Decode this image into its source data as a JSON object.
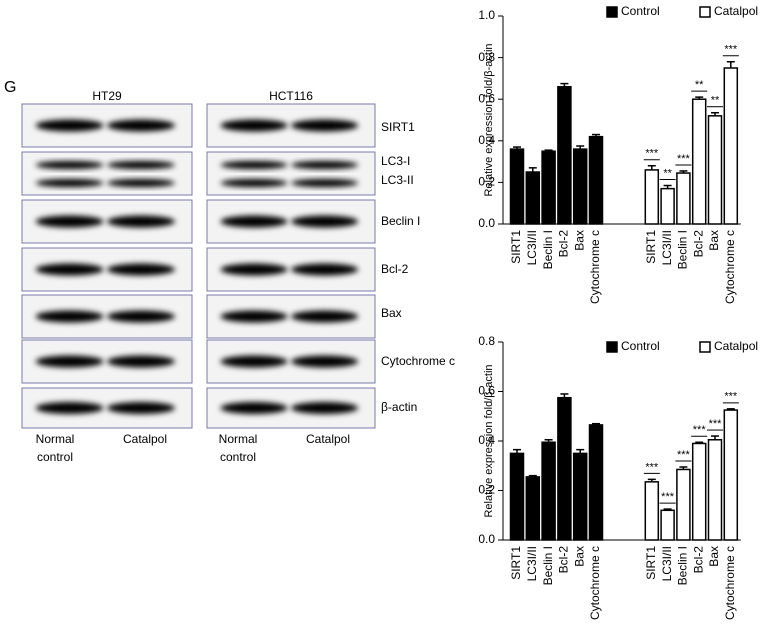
{
  "panel_label": "G",
  "blot": {
    "cell_lines": [
      "HT29",
      "HCT116"
    ],
    "proteins": [
      "SIRT1",
      "LC3-I",
      "LC3-II",
      "Beclin I",
      "Bcl-2",
      "Bax",
      "Cytochrome c",
      "β-actin"
    ],
    "lane_labels": [
      [
        "Normal",
        "control"
      ],
      [
        "Catalpol"
      ]
    ]
  },
  "chart_data": [
    {
      "type": "bar",
      "y_label": "Relative expression fold/β-actin",
      "categories": [
        "SIRT1",
        "LC3I/II",
        "Beclin I",
        "Bcl-2",
        "Bax",
        "Cytochrome c",
        "SIRT1",
        "LC3I/II",
        "Beclin I",
        "Bcl-2",
        "Bax",
        "Cytochrome c"
      ],
      "series": [
        {
          "name": "Control",
          "color": "#000000",
          "values": [
            0.36,
            0.25,
            0.35,
            0.66,
            0.36,
            0.42,
            null,
            null,
            null,
            null,
            null,
            null
          ],
          "errors": [
            0.01,
            0.02,
            0.005,
            0.015,
            0.015,
            0.01,
            null,
            null,
            null,
            null,
            null,
            null
          ]
        },
        {
          "name": "Catalpol",
          "color": "#ffffff",
          "values": [
            null,
            null,
            null,
            null,
            null,
            null,
            0.26,
            0.17,
            0.245,
            0.6,
            0.52,
            0.75
          ],
          "errors": [
            null,
            null,
            null,
            null,
            null,
            null,
            0.02,
            0.015,
            0.01,
            0.01,
            0.015,
            0.03
          ],
          "significance": [
            null,
            null,
            null,
            null,
            null,
            null,
            "***",
            "**",
            "***",
            "**",
            "**",
            "***"
          ]
        }
      ],
      "ylim": [
        0,
        1
      ],
      "yticks": [
        {
          "value": 0,
          "label": "0.0"
        },
        0.2,
        0.4,
        0.6,
        0.8,
        {
          "value": 1,
          "label": "1.0"
        }
      ],
      "legend": "top-right"
    },
    {
      "type": "bar",
      "y_label": "Relative expression fold/β-actin",
      "categories": [
        "SIRT1",
        "LC3I/II",
        "Beclin I",
        "Bcl-2",
        "Bax",
        "Cytochrome c",
        "SIRT1",
        "LC3I/II",
        "Beclin I",
        "Bcl-2",
        "Bax",
        "Cytochrome c"
      ],
      "series": [
        {
          "name": "Control",
          "color": "#000000",
          "values": [
            0.35,
            0.255,
            0.395,
            0.575,
            0.35,
            0.465,
            null,
            null,
            null,
            null,
            null,
            null
          ],
          "errors": [
            0.015,
            0.005,
            0.01,
            0.015,
            0.015,
            0.005,
            null,
            null,
            null,
            null,
            null,
            null
          ]
        },
        {
          "name": "Catalpol",
          "color": "#ffffff",
          "values": [
            null,
            null,
            null,
            null,
            null,
            null,
            0.235,
            0.12,
            0.285,
            0.39,
            0.405,
            0.525
          ],
          "errors": [
            null,
            null,
            null,
            null,
            null,
            null,
            0.01,
            0.005,
            0.01,
            0.005,
            0.015,
            0.005
          ],
          "significance": [
            null,
            null,
            null,
            null,
            null,
            null,
            "***",
            "***",
            "***",
            "***",
            "***",
            "***"
          ]
        }
      ],
      "ylim": [
        0,
        0.8
      ],
      "yticks": [
        {
          "value": 0,
          "label": "0.0"
        },
        0.2,
        0.4,
        0.6,
        0.8
      ],
      "legend": "top-right"
    }
  ]
}
